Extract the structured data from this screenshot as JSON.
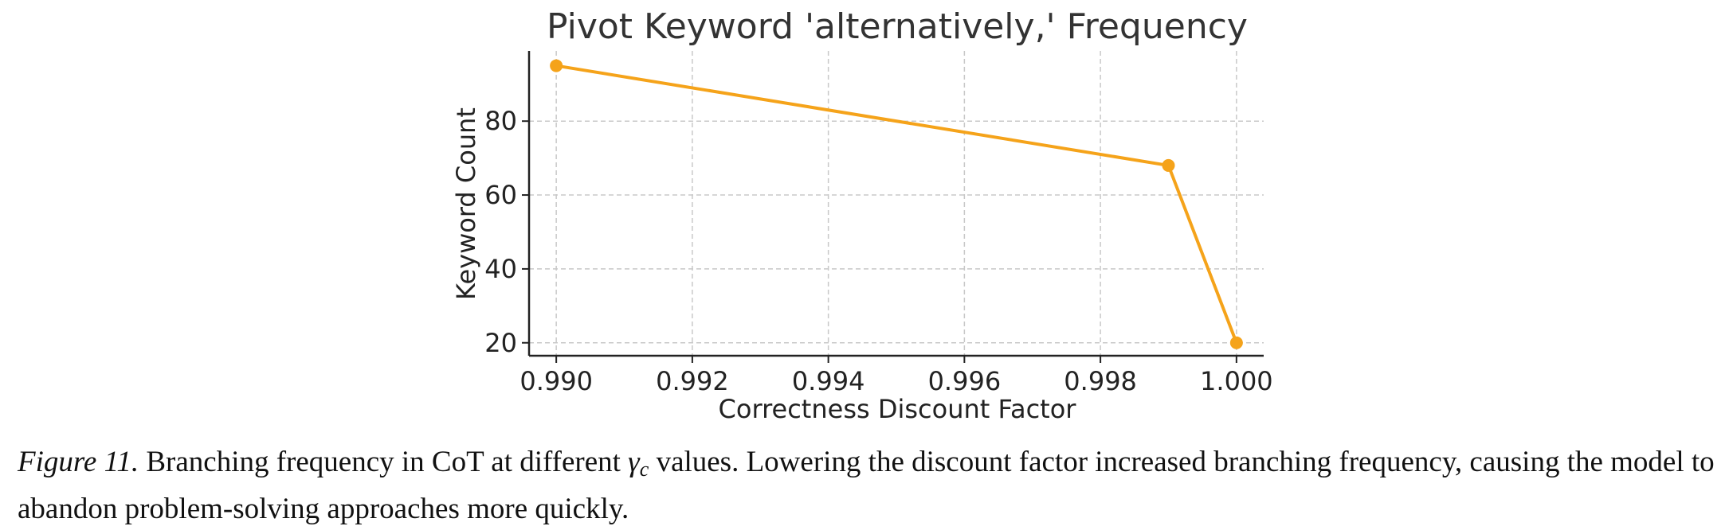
{
  "chart_data": {
    "type": "line",
    "title": "Pivot Keyword 'alternatively,' Frequency",
    "xlabel": "Correctness Discount Factor",
    "ylabel": "Keyword Count",
    "x": [
      0.99,
      0.999,
      1.0
    ],
    "series": [
      {
        "values": [
          95,
          68,
          20
        ],
        "color": "#f5a31a"
      }
    ],
    "xlim": [
      0.9896,
      1.0004
    ],
    "ylim": [
      16.5,
      99
    ],
    "xticks": [
      0.99,
      0.992,
      0.994,
      0.996,
      0.998,
      1.0
    ],
    "xtick_labels": [
      "0.990",
      "0.992",
      "0.994",
      "0.996",
      "0.998",
      "1.000"
    ],
    "yticks": [
      20,
      40,
      60,
      80
    ],
    "ytick_labels": [
      "20",
      "40",
      "60",
      "80"
    ],
    "grid": true,
    "grid_style": "dashed"
  },
  "caption": {
    "label": "Figure 11.",
    "text_before": " Branching frequency in CoT at different ",
    "symbol": "γ",
    "subscript": "c",
    "text_after": " values. Lowering the discount factor increased branching frequency, causing the model to abandon problem-solving approaches more quickly."
  }
}
